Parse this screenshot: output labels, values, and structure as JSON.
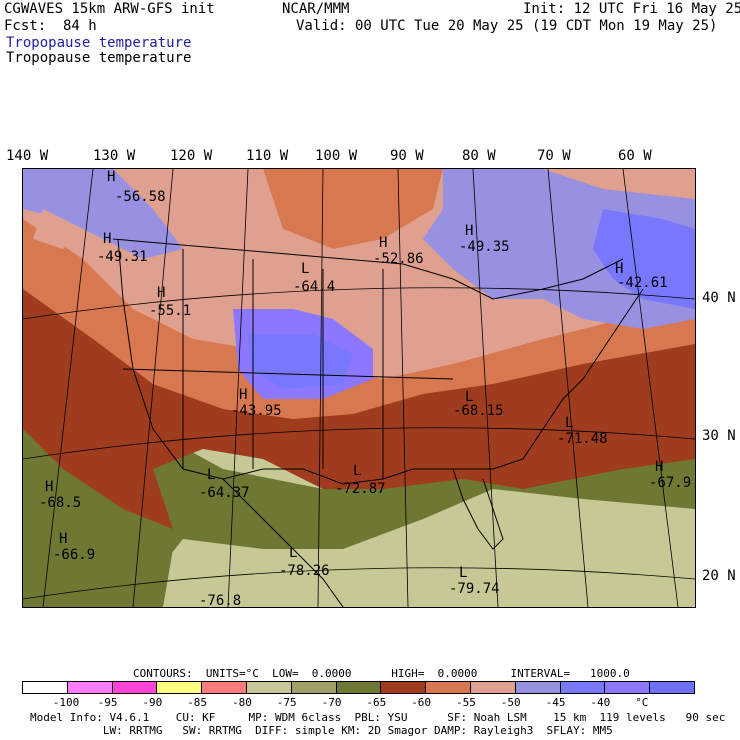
{
  "header": {
    "model_line": "CGWAVES 15km ARW-GFS init",
    "forecast_line": "Fcst:  84 h",
    "field_line_1": "Tropopause temperature",
    "field_line_2": "Tropopause temperature",
    "center_line": "NCAR/MMM",
    "init_line": "Init: 12 UTC Fri 16 May 25",
    "valid_line": "Valid: 00 UTC Tue 20 May 25 (19 CDT Mon 19 May 25)"
  },
  "longitudes": [
    "140 W",
    "130 W",
    "120 W",
    "110 W",
    "100 W",
    "90 W",
    "80 W",
    "70 W",
    "60 W"
  ],
  "latitudes": [
    "40 N",
    "30 N",
    "20 N"
  ],
  "map_labels": [
    {
      "h": "H",
      "v": "-56.58"
    },
    {
      "h": "H",
      "v": "-49.31"
    },
    {
      "h": "H",
      "v": "-55.1"
    },
    {
      "h": "L",
      "v": "-64.4"
    },
    {
      "h": "H",
      "v": "-52.86"
    },
    {
      "h": "H",
      "v": "-49.35"
    },
    {
      "h": "H",
      "v": "-42.61"
    },
    {
      "h": "H",
      "v": "-43.95"
    },
    {
      "h": "L",
      "v": "-68.15"
    },
    {
      "h": "L",
      "v": "-71.48"
    },
    {
      "h": "H",
      "v": "-68.5"
    },
    {
      "h": "L",
      "v": "-64.37"
    },
    {
      "h": "L",
      "v": "-72.87"
    },
    {
      "h": "H",
      "v": "-67.9"
    },
    {
      "h": "H",
      "v": "-66.9"
    },
    {
      "h": "L",
      "v": "-78.26"
    },
    {
      "h": "L",
      "v": "-79.74"
    },
    {
      "h": "",
      "v": "-76.8"
    }
  ],
  "contours": {
    "line": "CONTOURS:  UNITS=°C  LOW=  0.0000      HIGH=  0.0000     INTERVAL=   1000.0"
  },
  "colorbar": {
    "colors": [
      "#ffffff",
      "#ff7cff",
      "#ff44d8",
      "#ffff80",
      "#ff7c7c",
      "#c8c896",
      "#a0a064",
      "#6e7832",
      "#a03c1e",
      "#d87850",
      "#e0a090",
      "#9890e0",
      "#7878ff",
      "#8c78ff",
      "#7070ff"
    ],
    "labels": [
      "-100",
      "-95",
      "-90",
      "-85",
      "-80",
      "-75",
      "-70",
      "-65",
      "-60",
      "-55",
      "-50",
      "-45",
      "-40",
      "°C"
    ]
  },
  "footer": {
    "line1": "Model Info: V4.6.1    CU: KF     MP: WDM 6class  PBL: YSU      SF: Noah LSM    15 km  119 levels   90 sec",
    "line2": "           LW: RRTMG   SW: RRTMG  DIFF: simple KM: 2D Smagor DAMP: Rayleigh3  SFLAY: MM5"
  }
}
